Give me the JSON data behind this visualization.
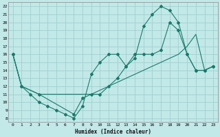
{
  "xlabel": "Humidex (Indice chaleur)",
  "bg_color": "#c2e8e8",
  "grid_color": "#a0d0d0",
  "line_color": "#1a7a6a",
  "xlim": [
    -0.5,
    23.5
  ],
  "ylim": [
    7.5,
    22.5
  ],
  "xticks": [
    0,
    1,
    2,
    3,
    4,
    5,
    6,
    7,
    8,
    9,
    10,
    11,
    12,
    13,
    14,
    15,
    16,
    17,
    18,
    19,
    20,
    21,
    22,
    23
  ],
  "yticks": [
    8,
    9,
    10,
    11,
    12,
    13,
    14,
    15,
    16,
    17,
    18,
    19,
    20,
    21,
    22
  ],
  "curve1_x": [
    0,
    1,
    2,
    3,
    4,
    5,
    6,
    7,
    8,
    9,
    10,
    11,
    12,
    13,
    14,
    15,
    16,
    17,
    18,
    19,
    20,
    21,
    22,
    23
  ],
  "curve1_y": [
    16,
    12,
    11,
    10,
    9.5,
    9,
    8.5,
    8,
    9.5,
    13.5,
    15,
    16,
    16,
    14.5,
    16,
    16,
    16,
    16.5,
    20,
    19,
    16,
    14,
    14,
    14.5
  ],
  "curve2_x": [
    0,
    1,
    3,
    7,
    8,
    9,
    10,
    11,
    12,
    13,
    14,
    15,
    16,
    17,
    18,
    19,
    20,
    21,
    22,
    23
  ],
  "curve2_y": [
    16,
    12,
    11,
    8.5,
    10.5,
    11,
    11,
    12,
    13,
    14.5,
    15.5,
    19.5,
    21,
    22,
    21.5,
    20,
    16,
    14,
    14,
    14.5
  ],
  "curve3_x": [
    0,
    1,
    2,
    3,
    4,
    5,
    6,
    7,
    8,
    9,
    10,
    11,
    12,
    13,
    14,
    15,
    16,
    17,
    18,
    19,
    20,
    21,
    22,
    23
  ],
  "curve3_y": [
    16,
    12,
    11.5,
    11,
    11,
    11,
    11,
    11,
    11,
    11,
    11.5,
    12,
    12.5,
    13,
    13.5,
    14,
    14.5,
    15,
    15.5,
    16,
    17,
    18.5,
    14,
    14.5
  ]
}
